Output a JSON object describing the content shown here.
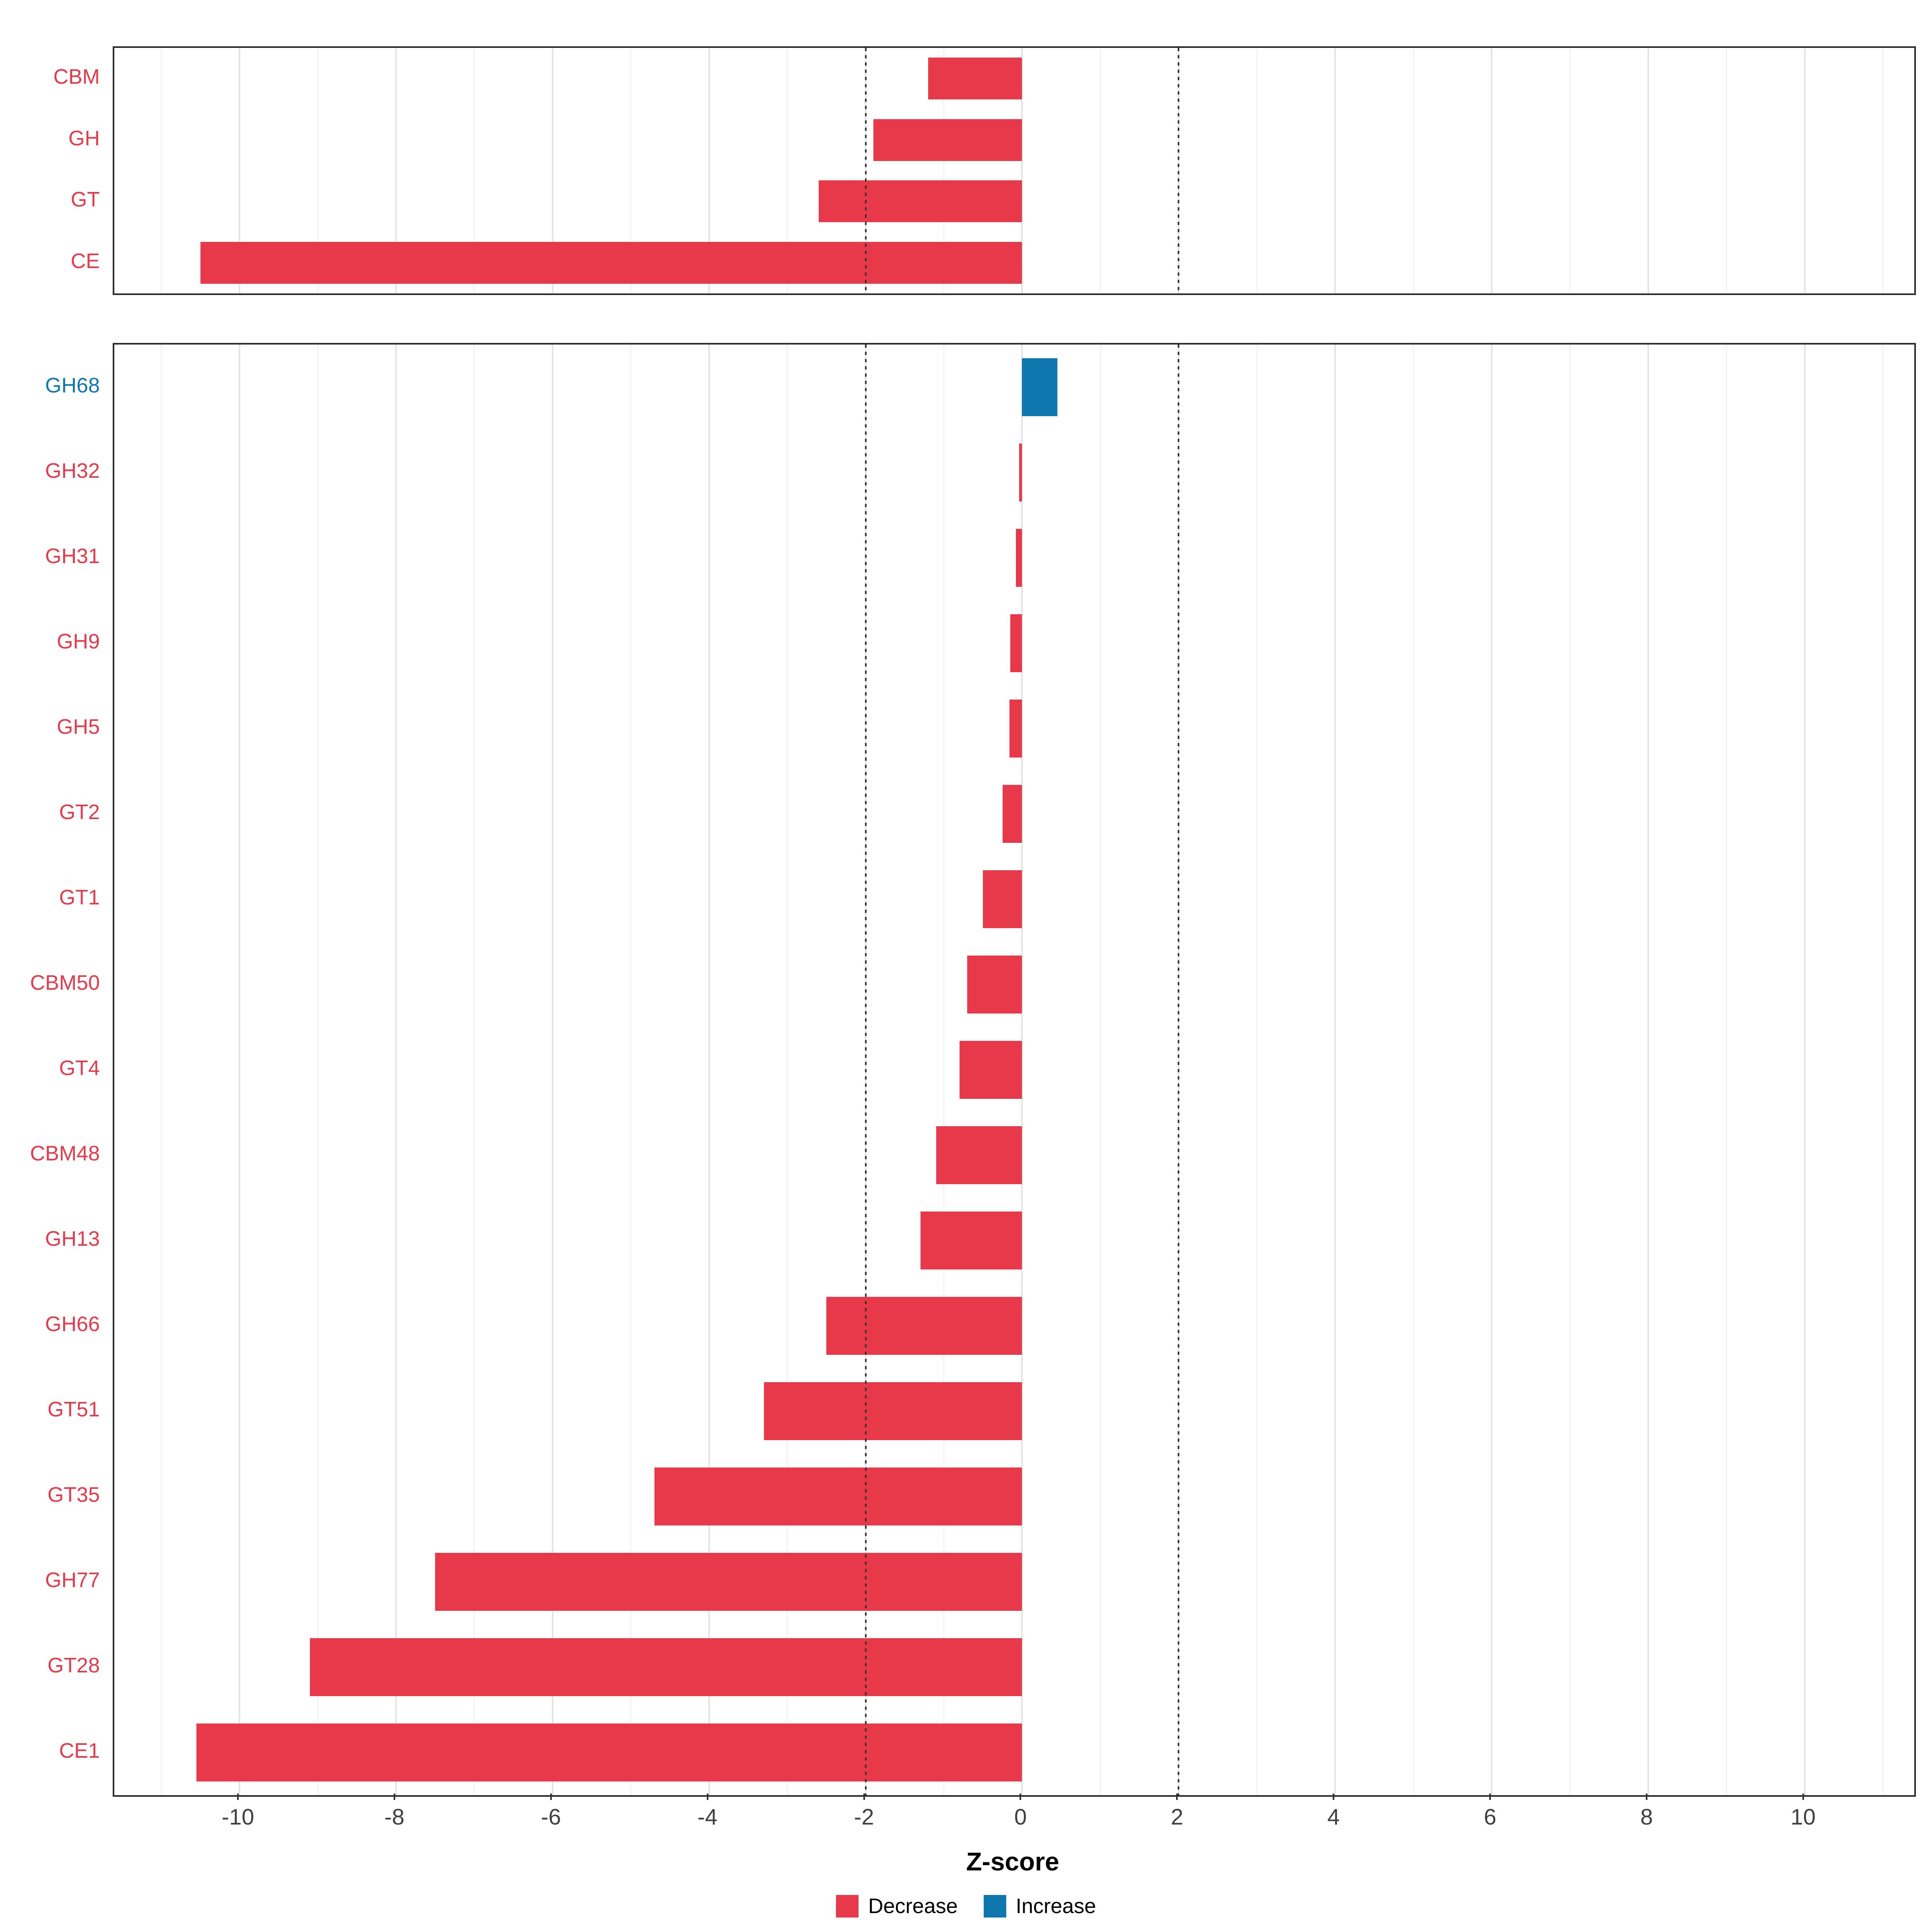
{
  "colors": {
    "decrease": "#E8394A",
    "increase": "#0E78AE",
    "reference_line": "#333333",
    "panel_border": "#2b2b2b"
  },
  "chart_data": [
    {
      "type": "bar",
      "orientation": "horizontal",
      "panel": "top",
      "title": "",
      "categories": [
        "CBM",
        "GH",
        "GT",
        "CE"
      ],
      "values": [
        -1.2,
        -1.9,
        -2.6,
        -10.5
      ],
      "series_class": [
        "decrease",
        "decrease",
        "decrease",
        "decrease"
      ],
      "xlim": [
        -11.6,
        11.4
      ],
      "reference_lines": [
        -2,
        2
      ],
      "grid": true
    },
    {
      "type": "bar",
      "orientation": "horizontal",
      "panel": "bottom",
      "title": "",
      "categories": [
        "GH68",
        "GH32",
        "GH31",
        "GH9",
        "GH5",
        "GT2",
        "GT1",
        "CBM50",
        "GT4",
        "CBM48",
        "GH13",
        "GH66",
        "GT51",
        "GT35",
        "GH77",
        "GT28",
        "CE1"
      ],
      "values": [
        0.45,
        -0.04,
        -0.08,
        -0.15,
        -0.16,
        -0.25,
        -0.5,
        -0.7,
        -0.8,
        -1.1,
        -1.3,
        -2.5,
        -3.3,
        -4.7,
        -7.5,
        -9.1,
        -10.55
      ],
      "series_class": [
        "increase",
        "decrease",
        "decrease",
        "decrease",
        "decrease",
        "decrease",
        "decrease",
        "decrease",
        "decrease",
        "decrease",
        "decrease",
        "decrease",
        "decrease",
        "decrease",
        "decrease",
        "decrease",
        "decrease"
      ],
      "xlabel": "Z-score",
      "xlim": [
        -11.6,
        11.4
      ],
      "xticks": [
        -10,
        -8,
        -6,
        -4,
        -2,
        0,
        2,
        4,
        6,
        8,
        10
      ],
      "reference_lines": [
        -2,
        2
      ],
      "grid": true
    }
  ],
  "legend": {
    "items": [
      {
        "label": "Decrease",
        "color": "#E8394A"
      },
      {
        "label": "Increase",
        "color": "#0E78AE"
      }
    ]
  }
}
